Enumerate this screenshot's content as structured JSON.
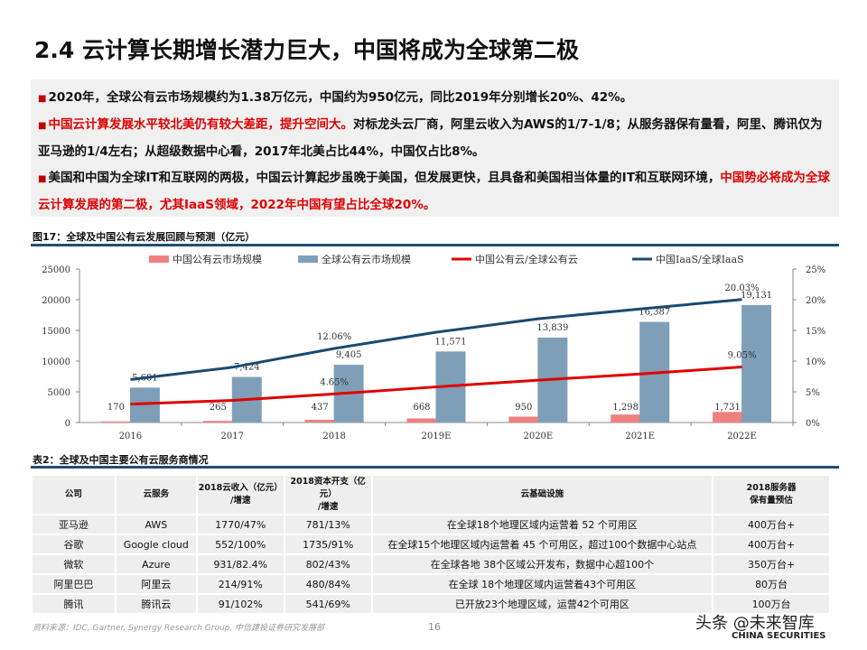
{
  "title": "2.4 云计算长期增长潜力巨大，中国将成为全球第二极",
  "summary": {
    "p1": "2020年，全球公有云市场规模约为1.38万亿元，中国约为950亿元，同比2019年分别增长20%、42%。",
    "p2_red": "中国云计算发展水平较北美仍有较大差距，提升空间大。",
    "p2_rest": "对标龙头云厂商，阿里云收入为AWS的1/7-1/8；从服务器保有量看，阿里、腾讯仅为亚马逊的1/4左右；从超级数据中心看，2017年北美占比44%，中国仅占比8%。",
    "p3_a": "美国和中国为全球IT和互联网的两极，中国云计算起步虽晚于美国，但发展更快，且具备和美国相当体量的IT和互联网环境，",
    "p3_red": "中国势必将成为全球云计算发展的第二极，尤其IaaS领域，2022年中国有望占比全球20%。"
  },
  "figure_title": "图17：全球及中国公有云发展回顾与预测（亿元）",
  "chart_data": {
    "type": "bar",
    "categories": [
      "2016",
      "2017",
      "2018",
      "2019E",
      "2020E",
      "2021E",
      "2022E"
    ],
    "series": [
      {
        "name": "中国公有云市场规模",
        "kind": "bar",
        "axis": "left",
        "color": "#f08080",
        "values": [
          170,
          265,
          437,
          668,
          950,
          1298,
          1731
        ],
        "labels": [
          "170",
          "265",
          "437",
          "668",
          "950",
          "1,298",
          "1,731"
        ]
      },
      {
        "name": "全球公有云市场规模",
        "kind": "bar",
        "axis": "left",
        "color": "#7f9fb8",
        "values": [
          5681,
          7424,
          9405,
          11571,
          13839,
          16387,
          19131
        ],
        "labels": [
          "5,681",
          "7,424",
          "9,405",
          "11,571",
          "13,839",
          "16,387",
          "19,131"
        ]
      },
      {
        "name": "中国公有云/全球公有云",
        "kind": "line",
        "axis": "right",
        "color": "#e00000",
        "values": [
          3.0,
          3.6,
          4.65,
          5.8,
          6.9,
          7.9,
          9.05
        ],
        "labels": {
          "2": "4.65%",
          "6": "9.05%"
        }
      },
      {
        "name": "中国IaaS/全球IaaS",
        "kind": "line",
        "axis": "right",
        "color": "#1a4a70",
        "values": [
          7.0,
          9.0,
          12.06,
          14.7,
          16.9,
          18.5,
          20.03
        ],
        "labels": {
          "2": "12.06%",
          "6": "20.03%"
        }
      }
    ],
    "ylim": [
      0,
      25000
    ],
    "yticks": [
      "0",
      "5000",
      "10000",
      "15000",
      "20000",
      "25000"
    ],
    "y2lim": [
      0,
      25
    ],
    "y2ticks": [
      "0%",
      "5%",
      "10%",
      "15%",
      "20%",
      "25%"
    ],
    "legend": "top"
  },
  "table_title": "表2：全球及中国主要公有云服务商情况",
  "table": {
    "headers": [
      [
        "公司"
      ],
      [
        "云服务"
      ],
      [
        "2018云收入（亿元）",
        "/增速"
      ],
      [
        "2018资本开支（亿元）",
        "/增速"
      ],
      [
        "云基础设施"
      ],
      [
        "2018服务器",
        "保有量预估"
      ]
    ],
    "rows": [
      [
        "亚马逊",
        "AWS",
        "1770/47%",
        "781/13%",
        "在全球18个地理区域内运营着 52 个可用区",
        "400万台+"
      ],
      [
        "谷歌",
        "Google cloud",
        "552/100%",
        "1735/91%",
        "在全球15个地理区域内运营着 45 个可用区，超过100个数据中心站点",
        "400万台+"
      ],
      [
        "微软",
        "Azure",
        "931/82.4%",
        "802/43%",
        "在全球各地 38个区域公开发布，数据中心超100个",
        "350万台+"
      ],
      [
        "阿里巴巴",
        "阿里云",
        "214/91%",
        "480/84%",
        "在全球 18个地理区域内运营着43个可用区",
        "80万台"
      ],
      [
        "腾讯",
        "腾讯云",
        "91/102%",
        "541/69%",
        "已开放23个地理区域，运营42个可用区",
        "100万台"
      ]
    ]
  },
  "source": "资料来源：IDC, Gartner, Synergy Research Group, 中信建投证券研究发展部",
  "page_number": "16",
  "watermark": "头条 @未来智库",
  "brand": "CHINA SECURITIES"
}
